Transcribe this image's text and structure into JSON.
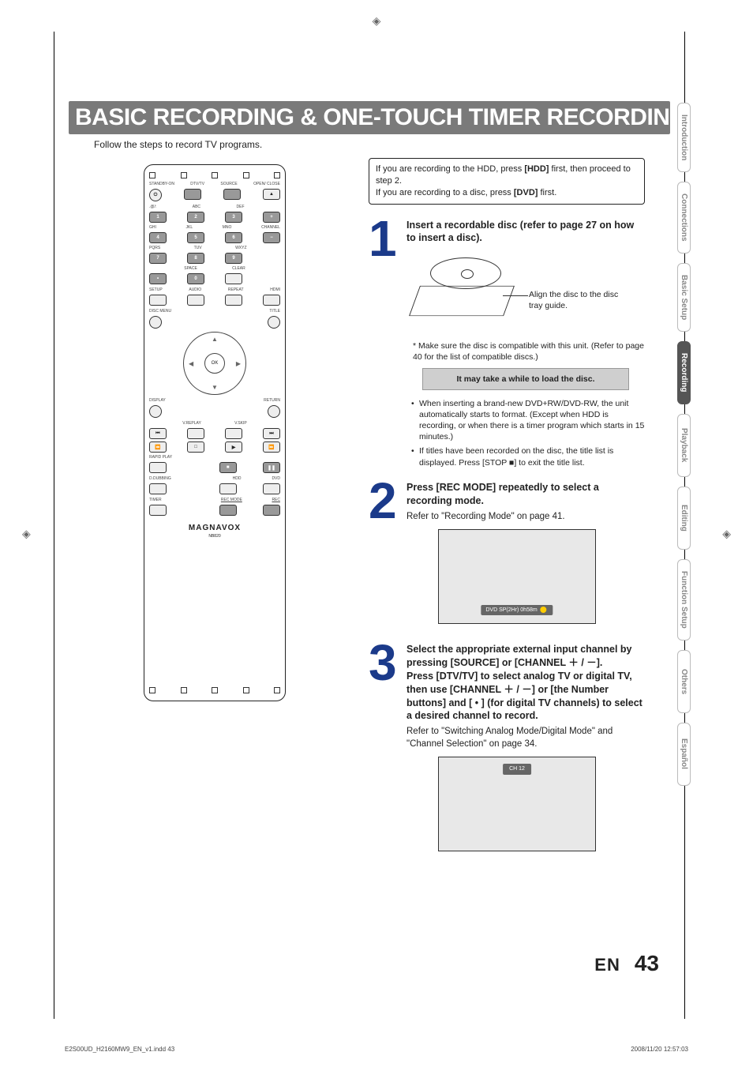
{
  "cropmark_glyph": "◈",
  "title": "BASIC RECORDING & ONE-TOUCH TIMER RECORDING",
  "intro": "Follow the steps to record TV programs.",
  "infobox": {
    "line1_pre": "If you are recording to the HDD, press ",
    "line1_bold": "[HDD]",
    "line1_post": " first, then proceed to step 2.",
    "line2_pre": "If you are recording to a disc, press ",
    "line2_bold": "[DVD]",
    "line2_post": " first."
  },
  "steps": {
    "s1": {
      "num": "1",
      "heading": "Insert a recordable disc (refer to page 27 on how to insert a disc).",
      "disc_caption": "Align the disc to the disc tray guide.",
      "asterisk": "* Make sure the disc is compatible with this unit. (Refer to page 40 for the list of compatible discs.)",
      "grey_note": "It may take a while to load the disc.",
      "bullets": [
        "When inserting a brand-new DVD+RW/DVD-RW, the unit automatically starts to format. (Except when HDD is recording, or when there is a timer program which starts in 15 minutes.)",
        "If titles have been recorded on the disc, the title list is displayed. Press [STOP ■] to exit the title list."
      ]
    },
    "s2": {
      "num": "2",
      "heading": "Press [REC MODE] repeatedly to select a recording mode.",
      "sub": "Refer to \"Recording Mode\" on page 41.",
      "screen_label": "DVD  SP(2Hr)      0h58m"
    },
    "s3": {
      "num": "3",
      "heading": "Select the appropriate external input channel by pressing [SOURCE] or [CHANNEL ＋ / －].\nPress [DTV/TV] to select analog TV or digital TV, then use [CHANNEL ＋ / －] or [the Number buttons] and [ • ] (for digital TV channels) to select a desired channel to record.",
      "sub": "Refer to \"Switching Analog Mode/Digital Mode\" and \"Channel Selection\" on page 34.",
      "screen_tag": "CH   12"
    }
  },
  "remote": {
    "brand": "MAGNAVOX",
    "model": "NB820",
    "row_labels_1": [
      "STANDBY-ON",
      "DTV/TV",
      "SOURCE",
      "OPEN/ CLOSE"
    ],
    "row_labels_2": [
      ".@/:",
      "ABC",
      "DEF",
      ""
    ],
    "keypad": [
      [
        "1",
        "2",
        "3",
        "+"
      ],
      [
        "4",
        "5",
        "6",
        "−"
      ],
      [
        "7",
        "8",
        "9",
        ""
      ],
      [
        "•",
        "0",
        "",
        ""
      ]
    ],
    "alpha": [
      "GHI",
      "JKL",
      "MNO",
      "CHANNEL",
      "PQRS",
      "TUV",
      "WXYZ",
      "",
      "",
      "SPACE",
      "CLEAR",
      ""
    ],
    "row_mid": [
      "SETUP",
      "AUDIO",
      "REPEAT",
      "HDMI"
    ],
    "disc_menu": "DISC MENU",
    "title": "TITLE",
    "display": "DISPLAY",
    "return": "RETURN",
    "ok": "OK",
    "vreplay": "V.REPLAY",
    "vskip": "V.SKIP",
    "rapid": "RAPID PLAY",
    "ddub": "D.DUBBING",
    "hdd": "HDD",
    "dvd": "DVD",
    "timer": "TIMER",
    "recmode": "REC MODE",
    "rec": "REC"
  },
  "sidetabs": [
    {
      "label": "Introduction",
      "active": false
    },
    {
      "label": "Connections",
      "active": false
    },
    {
      "label": "Basic Setup",
      "active": false
    },
    {
      "label": "Recording",
      "active": true
    },
    {
      "label": "Playback",
      "active": false
    },
    {
      "label": "Editing",
      "active": false
    },
    {
      "label": "Function Setup",
      "active": false
    },
    {
      "label": "Others",
      "active": false
    },
    {
      "label": "Español",
      "active": false
    }
  ],
  "footer": {
    "lang": "EN",
    "page": "43"
  },
  "print_meta": {
    "left": "E2S00UD_H2160MW9_EN_v1.indd   43",
    "right": "2008/11/20   12:57:03"
  },
  "colors": {
    "step_num": "#1b3a8a",
    "title_band": "#7a7a7a",
    "grey_note_bg": "#cfcfcf",
    "screen_bg": "#e8e8e8",
    "strip_bg": "#666666",
    "tab_active_bg": "#555555"
  }
}
